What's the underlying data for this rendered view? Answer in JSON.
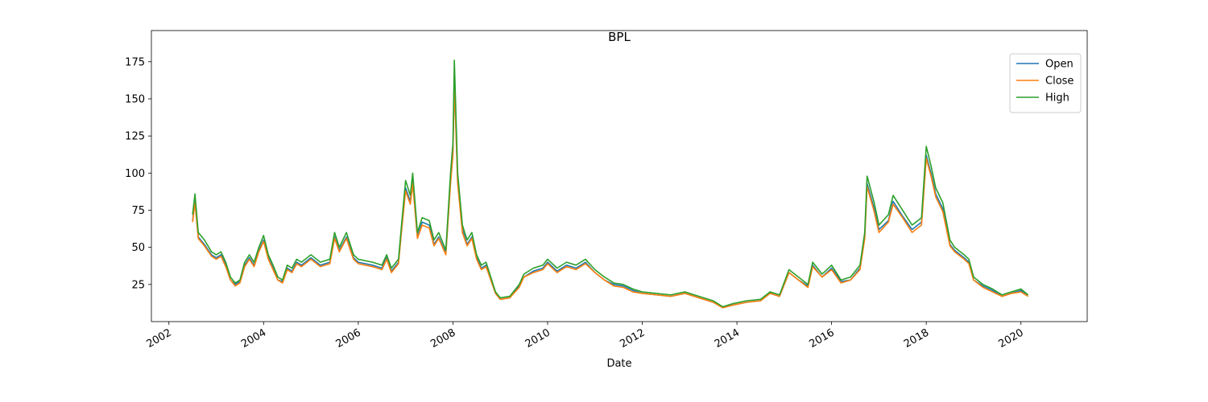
{
  "chart_data": {
    "type": "line",
    "title": "BPL",
    "xlabel": "Date",
    "x": [
      2002.5,
      2002.55,
      2002.62,
      2002.75,
      2002.9,
      2003.0,
      2003.1,
      2003.2,
      2003.3,
      2003.4,
      2003.5,
      2003.6,
      2003.7,
      2003.8,
      2003.9,
      2004.0,
      2004.1,
      2004.2,
      2004.3,
      2004.4,
      2004.5,
      2004.6,
      2004.7,
      2004.8,
      2005.0,
      2005.2,
      2005.4,
      2005.5,
      2005.6,
      2005.75,
      2005.9,
      2006.0,
      2006.3,
      2006.5,
      2006.6,
      2006.7,
      2006.85,
      2006.9,
      2007.0,
      2007.1,
      2007.15,
      2007.25,
      2007.35,
      2007.5,
      2007.6,
      2007.7,
      2007.85,
      2007.95,
      2008.0,
      2008.03,
      2008.1,
      2008.2,
      2008.3,
      2008.4,
      2008.5,
      2008.6,
      2008.7,
      2008.8,
      2008.9,
      2009.0,
      2009.2,
      2009.4,
      2009.5,
      2009.7,
      2009.9,
      2010.0,
      2010.2,
      2010.4,
      2010.6,
      2010.8,
      2011.0,
      2011.2,
      2011.4,
      2011.6,
      2011.8,
      2012.0,
      2012.3,
      2012.6,
      2012.9,
      2013.2,
      2013.5,
      2013.7,
      2013.9,
      2014.2,
      2014.5,
      2014.7,
      2014.9,
      2015.1,
      2015.3,
      2015.5,
      2015.6,
      2015.8,
      2016.0,
      2016.2,
      2016.4,
      2016.6,
      2016.7,
      2016.75,
      2016.9,
      2017.0,
      2017.2,
      2017.3,
      2017.5,
      2017.7,
      2017.9,
      2018.0,
      2018.1,
      2018.2,
      2018.35,
      2018.5,
      2018.6,
      2018.8,
      2018.9,
      2019.0,
      2019.2,
      2019.4,
      2019.6,
      2019.8,
      2020.0,
      2020.15
    ],
    "series": [
      {
        "name": "Open",
        "color": "#1f77b4",
        "values": [
          68,
          82,
          57,
          52,
          45,
          43,
          45,
          38,
          28,
          25,
          27,
          38,
          43,
          38,
          48,
          55,
          43,
          36,
          28,
          27,
          36,
          34,
          40,
          38,
          43,
          38,
          40,
          57,
          48,
          57,
          43,
          40,
          38,
          36,
          43,
          34,
          40,
          57,
          90,
          81,
          95,
          57,
          67,
          65,
          52,
          57,
          46,
          95,
          114,
          165,
          95,
          62,
          52,
          57,
          43,
          36,
          38,
          28,
          19,
          15,
          16,
          24,
          30,
          34,
          36,
          40,
          34,
          38,
          36,
          40,
          33,
          28,
          25,
          24,
          21,
          19,
          18,
          17,
          19,
          16,
          13,
          9.5,
          11,
          13,
          14,
          19,
          17,
          33,
          28,
          24,
          38,
          30,
          36,
          27,
          28,
          36,
          57,
          93,
          76,
          62,
          68,
          81,
          71,
          62,
          67,
          112,
          100,
          86,
          76,
          52,
          48,
          43,
          40,
          28,
          24,
          21,
          17,
          19,
          21,
          17
        ]
      },
      {
        "name": "Close",
        "color": "#ff7f0e",
        "values": [
          67,
          80,
          56,
          51,
          44,
          42,
          44,
          37,
          28,
          24,
          26,
          37,
          42,
          37,
          47,
          54,
          42,
          35,
          28,
          26,
          35,
          33,
          39,
          37,
          42,
          37,
          39,
          56,
          47,
          56,
          42,
          39,
          37,
          35,
          42,
          33,
          39,
          56,
          88,
          79,
          93,
          56,
          65,
          63,
          51,
          56,
          45,
          93,
          112,
          160,
          93,
          60,
          51,
          56,
          42,
          35,
          37,
          28,
          19,
          15,
          16,
          23,
          30,
          33,
          35,
          39,
          33,
          37,
          35,
          39,
          33,
          28,
          24,
          23,
          20,
          19,
          18,
          17,
          19,
          16,
          13,
          9.3,
          11,
          13,
          14,
          19,
          17,
          33,
          28,
          23,
          37,
          30,
          35,
          26,
          28,
          35,
          56,
          91,
          74,
          60,
          67,
          79,
          70,
          60,
          65,
          110,
          98,
          84,
          74,
          51,
          47,
          42,
          39,
          28,
          23,
          20,
          17,
          19,
          20,
          17
        ]
      },
      {
        "name": "High",
        "color": "#2ca02c",
        "values": [
          72,
          86,
          60,
          55,
          47,
          45,
          47,
          40,
          30,
          26,
          28,
          40,
          45,
          40,
          50,
          58,
          45,
          38,
          30,
          28,
          38,
          36,
          42,
          40,
          45,
          40,
          42,
          60,
          50,
          60,
          45,
          42,
          40,
          38,
          45,
          36,
          42,
          60,
          95,
          85,
          100,
          60,
          70,
          68,
          55,
          60,
          48,
          100,
          120,
          176,
          100,
          65,
          55,
          60,
          45,
          38,
          40,
          30,
          20,
          16,
          17,
          25,
          32,
          36,
          38,
          42,
          36,
          40,
          38,
          42,
          35,
          30,
          26,
          25,
          22,
          20,
          19,
          18,
          20,
          17,
          14,
          10,
          12,
          14,
          15,
          20,
          18,
          35,
          30,
          25,
          40,
          32,
          38,
          28,
          30,
          38,
          60,
          98,
          80,
          65,
          72,
          85,
          75,
          65,
          70,
          118,
          105,
          90,
          80,
          55,
          50,
          45,
          42,
          30,
          25,
          22,
          18,
          20,
          22,
          18
        ]
      }
    ],
    "xlim": [
      2001.63,
      2021.4
    ],
    "xticks": [
      2002,
      2004,
      2006,
      2008,
      2010,
      2012,
      2014,
      2016,
      2018,
      2020
    ],
    "ylim": [
      0,
      196
    ],
    "yticks": [
      25,
      50,
      75,
      100,
      125,
      150,
      175
    ],
    "legend": "upper right"
  }
}
